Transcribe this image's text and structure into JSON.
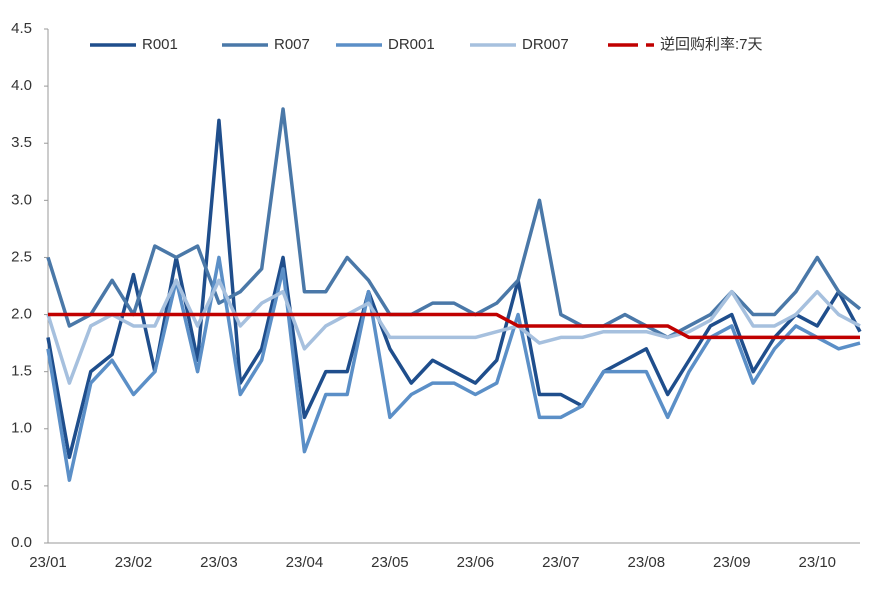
{
  "chart_data": {
    "type": "line",
    "categories": [
      "23/01",
      null,
      null,
      null,
      "23/02",
      null,
      null,
      null,
      "23/03",
      null,
      null,
      null,
      "23/04",
      null,
      null,
      null,
      "23/05",
      null,
      null,
      null,
      "23/06",
      null,
      null,
      null,
      "23/07",
      null,
      null,
      null,
      "23/08",
      null,
      null,
      null,
      "23/09",
      null,
      null,
      null,
      "23/10",
      null,
      null
    ],
    "series": [
      {
        "name": "R001",
        "color": "#1f4e8c",
        "values": [
          1.8,
          0.75,
          1.5,
          1.65,
          2.35,
          1.5,
          2.5,
          1.6,
          3.7,
          1.4,
          1.7,
          2.5,
          1.1,
          1.5,
          1.5,
          2.2,
          1.7,
          1.4,
          1.6,
          1.5,
          1.4,
          1.6,
          2.3,
          1.3,
          1.3,
          1.2,
          1.5,
          1.6,
          1.7,
          1.3,
          1.6,
          1.9,
          2.0,
          1.5,
          1.8,
          2.0,
          1.9,
          2.2,
          1.85
        ]
      },
      {
        "name": "R007",
        "color": "#4a78a8",
        "values": [
          2.5,
          1.9,
          2.0,
          2.3,
          2.0,
          2.6,
          2.5,
          2.6,
          2.1,
          2.2,
          2.4,
          3.8,
          2.2,
          2.2,
          2.5,
          2.3,
          2.0,
          2.0,
          2.1,
          2.1,
          2.0,
          2.1,
          2.3,
          3.0,
          2.0,
          1.9,
          1.9,
          2.0,
          1.9,
          1.8,
          1.9,
          2.0,
          2.2,
          2.0,
          2.0,
          2.2,
          2.5,
          2.2,
          2.05
        ]
      },
      {
        "name": "DR001",
        "color": "#5b8fc7",
        "values": [
          1.7,
          0.55,
          1.4,
          1.6,
          1.3,
          1.5,
          2.3,
          1.5,
          2.5,
          1.3,
          1.6,
          2.4,
          0.8,
          1.3,
          1.3,
          2.2,
          1.1,
          1.3,
          1.4,
          1.4,
          1.3,
          1.4,
          2.0,
          1.1,
          1.1,
          1.2,
          1.5,
          1.5,
          1.5,
          1.1,
          1.5,
          1.8,
          1.9,
          1.4,
          1.7,
          1.9,
          1.8,
          1.7,
          1.75
        ]
      },
      {
        "name": "DR007",
        "color": "#a6c0de",
        "values": [
          2.0,
          1.4,
          1.9,
          2.0,
          1.9,
          1.9,
          2.3,
          1.9,
          2.3,
          1.9,
          2.1,
          2.2,
          1.7,
          1.9,
          2.0,
          2.1,
          1.8,
          1.8,
          1.8,
          1.8,
          1.8,
          1.85,
          1.9,
          1.75,
          1.8,
          1.8,
          1.85,
          1.85,
          1.85,
          1.8,
          1.85,
          1.95,
          2.2,
          1.9,
          1.9,
          2.0,
          2.2,
          2.0,
          1.9
        ]
      },
      {
        "name": "逆回购利率:7天",
        "color": "#c00000",
        "dashed_legend": true,
        "values": [
          2.0,
          2.0,
          2.0,
          2.0,
          2.0,
          2.0,
          2.0,
          2.0,
          2.0,
          2.0,
          2.0,
          2.0,
          2.0,
          2.0,
          2.0,
          2.0,
          2.0,
          2.0,
          2.0,
          2.0,
          2.0,
          2.0,
          1.9,
          1.9,
          1.9,
          1.9,
          1.9,
          1.9,
          1.9,
          1.9,
          1.8,
          1.8,
          1.8,
          1.8,
          1.8,
          1.8,
          1.8,
          1.8,
          1.8
        ]
      }
    ],
    "ylim": [
      0,
      4.5
    ],
    "yticks": [
      {
        "value": 0,
        "label": "0.0"
      },
      0.5,
      {
        "value": 1,
        "label": "1.0"
      },
      1.5,
      {
        "value": 2,
        "label": "2.0"
      },
      2.5,
      {
        "value": 3,
        "label": "3.0"
      },
      3.5,
      {
        "value": 4,
        "label": "4.0"
      },
      4.5
    ],
    "grid": false,
    "legend": "top"
  }
}
